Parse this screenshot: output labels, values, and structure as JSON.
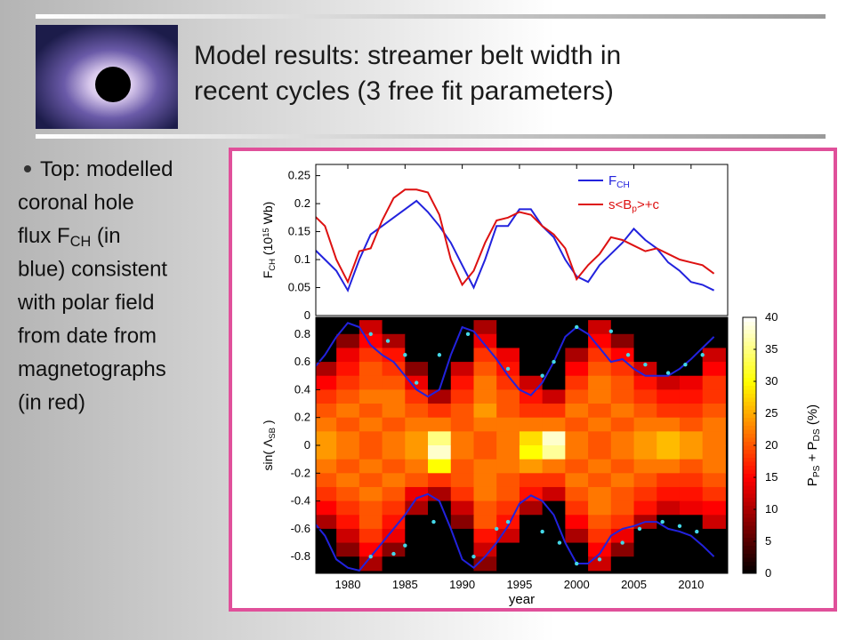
{
  "slide": {
    "title": [
      "Model results: streamer belt width in",
      "recent cycles (3 free fit parameters)"
    ],
    "bullet": [
      "Top: modelled",
      "coronal hole",
      [
        "flux F",
        {
          "text": "CH",
          "shift": "sub"
        },
        " (in"
      ],
      "blue) consistent",
      "with polar field",
      "from date from",
      "magnetographs",
      "(in red)"
    ]
  },
  "chart_data": [
    {
      "type": "line",
      "ylabel": [
        "F",
        {
          "text": "CH",
          "shift": "sub"
        },
        " (10",
        {
          "text": "15",
          "shift": "super"
        },
        " Wb)"
      ],
      "x": [
        1977,
        1978,
        1979,
        1980,
        1981,
        1982,
        1983,
        1984,
        1985,
        1986,
        1987,
        1988,
        1989,
        1990,
        1991,
        1992,
        1993,
        1994,
        1995,
        1996,
        1997,
        1998,
        1999,
        2000,
        2001,
        2002,
        2003,
        2004,
        2005,
        2006,
        2007,
        2008,
        2009,
        2010,
        2011,
        2012
      ],
      "series": [
        {
          "name": [
            "F",
            {
              "text": "CH",
              "shift": "sub"
            }
          ],
          "color": "#2222dd",
          "values": [
            0.12,
            0.1,
            0.08,
            0.045,
            0.1,
            0.145,
            0.16,
            0.175,
            0.19,
            0.205,
            0.185,
            0.16,
            0.13,
            0.09,
            0.05,
            0.1,
            0.16,
            0.16,
            0.19,
            0.19,
            0.16,
            0.14,
            0.1,
            0.07,
            0.06,
            0.09,
            0.11,
            0.13,
            0.155,
            0.135,
            0.12,
            0.095,
            0.08,
            0.06,
            0.055,
            0.045
          ]
        },
        {
          "name": [
            "s<B",
            {
              "text": "p",
              "shift": "sub"
            },
            ">+c"
          ],
          "color": "#dd1111",
          "values": [
            0.18,
            0.16,
            0.1,
            0.06,
            0.115,
            0.12,
            0.17,
            0.21,
            0.225,
            0.225,
            0.22,
            0.18,
            0.1,
            0.055,
            0.08,
            0.13,
            0.17,
            0.175,
            0.185,
            0.18,
            0.16,
            0.145,
            0.12,
            0.065,
            0.09,
            0.11,
            0.14,
            0.135,
            0.125,
            0.115,
            0.12,
            0.11,
            0.1,
            0.095,
            0.09,
            0.075
          ]
        }
      ],
      "xlim": [
        1977.2,
        2013.2
      ],
      "ylim": [
        0,
        0.27
      ],
      "yticks": [
        0,
        0.05,
        0.1,
        0.15,
        0.2,
        0.25
      ]
    },
    {
      "type": "heatmap",
      "xlabel": "year",
      "ylabel": [
        "sin( Λ",
        {
          "text": "SB",
          "shift": "sub"
        },
        " )"
      ],
      "colorbar_label": [
        "P",
        {
          "text": "PS",
          "shift": "sub"
        },
        " + P",
        {
          "text": "DS",
          "shift": "sub"
        },
        "   (%)"
      ],
      "x": [
        1978,
        1980,
        1982,
        1984,
        1986,
        1988,
        1990,
        1992,
        1994,
        1996,
        1998,
        2000,
        2002,
        2004,
        2006,
        2008,
        2010,
        2012
      ],
      "y": [
        0.85,
        0.75,
        0.65,
        0.55,
        0.45,
        0.35,
        0.25,
        0.15,
        0.05,
        -0.05,
        -0.15,
        -0.25,
        -0.35,
        -0.45,
        -0.55,
        -0.65,
        -0.75,
        -0.85
      ],
      "z": [
        [
          0,
          0,
          12,
          0,
          0,
          0,
          0,
          10,
          0,
          0,
          0,
          0,
          12,
          0,
          0,
          0,
          0,
          0
        ],
        [
          0,
          8,
          15,
          10,
          0,
          0,
          0,
          14,
          0,
          0,
          0,
          0,
          15,
          8,
          0,
          0,
          0,
          0
        ],
        [
          0,
          14,
          18,
          16,
          0,
          0,
          0,
          18,
          14,
          0,
          0,
          10,
          18,
          15,
          0,
          0,
          0,
          12
        ],
        [
          10,
          16,
          20,
          18,
          8,
          0,
          12,
          20,
          16,
          0,
          0,
          15,
          20,
          18,
          12,
          0,
          0,
          15
        ],
        [
          15,
          18,
          20,
          20,
          14,
          0,
          16,
          22,
          18,
          12,
          0,
          18,
          22,
          20,
          16,
          12,
          14,
          18
        ],
        [
          18,
          20,
          22,
          22,
          18,
          10,
          18,
          22,
          20,
          16,
          12,
          20,
          22,
          20,
          18,
          16,
          16,
          18
        ],
        [
          20,
          22,
          20,
          22,
          20,
          18,
          20,
          24,
          20,
          18,
          18,
          22,
          20,
          22,
          20,
          18,
          18,
          20
        ],
        [
          22,
          20,
          22,
          20,
          22,
          22,
          20,
          22,
          22,
          22,
          22,
          20,
          22,
          20,
          22,
          22,
          20,
          22
        ],
        [
          24,
          22,
          20,
          22,
          24,
          35,
          22,
          20,
          22,
          28,
          38,
          22,
          20,
          22,
          24,
          26,
          24,
          22
        ],
        [
          24,
          22,
          20,
          22,
          24,
          38,
          22,
          20,
          22,
          30,
          36,
          22,
          20,
          22,
          24,
          26,
          24,
          22
        ],
        [
          22,
          20,
          22,
          20,
          22,
          30,
          20,
          22,
          22,
          24,
          22,
          20,
          22,
          20,
          22,
          22,
          20,
          22
        ],
        [
          20,
          22,
          20,
          22,
          20,
          18,
          20,
          22,
          20,
          18,
          18,
          22,
          20,
          22,
          20,
          18,
          18,
          20
        ],
        [
          18,
          20,
          22,
          20,
          14,
          10,
          18,
          22,
          20,
          16,
          12,
          20,
          22,
          20,
          18,
          16,
          16,
          18
        ],
        [
          15,
          18,
          20,
          18,
          10,
          0,
          12,
          20,
          18,
          10,
          0,
          18,
          22,
          20,
          16,
          12,
          14,
          15
        ],
        [
          10,
          16,
          20,
          16,
          0,
          0,
          8,
          20,
          16,
          0,
          0,
          15,
          20,
          18,
          10,
          0,
          0,
          12
        ],
        [
          0,
          12,
          18,
          14,
          0,
          0,
          0,
          16,
          12,
          0,
          0,
          10,
          18,
          14,
          0,
          0,
          0,
          0
        ],
        [
          0,
          8,
          15,
          8,
          0,
          0,
          0,
          12,
          0,
          0,
          0,
          0,
          15,
          8,
          0,
          0,
          0,
          0
        ],
        [
          0,
          0,
          10,
          0,
          0,
          0,
          0,
          8,
          0,
          0,
          0,
          0,
          12,
          0,
          0,
          0,
          0,
          0
        ]
      ],
      "lines": [
        {
          "color": "#2222dd",
          "x": [
            1977,
            1978,
            1979,
            1980,
            1981,
            1982,
            1983,
            1984,
            1985,
            1986,
            1987,
            1988,
            1989,
            1990,
            1991,
            1992,
            1993,
            1994,
            1995,
            1996,
            1997,
            1998,
            1999,
            2000,
            2001,
            2002,
            2003,
            2004,
            2005,
            2006,
            2007,
            2008,
            2009,
            2010,
            2011,
            2012
          ],
          "values": [
            0.55,
            0.65,
            0.78,
            0.88,
            0.85,
            0.72,
            0.65,
            0.6,
            0.5,
            0.4,
            0.35,
            0.4,
            0.65,
            0.85,
            0.82,
            0.72,
            0.62,
            0.5,
            0.4,
            0.36,
            0.45,
            0.6,
            0.78,
            0.85,
            0.8,
            0.7,
            0.6,
            0.62,
            0.55,
            0.5,
            0.5,
            0.5,
            0.55,
            0.62,
            0.7,
            0.78
          ]
        },
        {
          "color": "#2222dd",
          "x": [
            1977,
            1978,
            1979,
            1980,
            1981,
            1982,
            1983,
            1984,
            1985,
            1986,
            1987,
            1988,
            1989,
            1990,
            1991,
            1992,
            1993,
            1994,
            1995,
            1996,
            1997,
            1998,
            1999,
            2000,
            2001,
            2002,
            2003,
            2004,
            2005,
            2006,
            2007,
            2008,
            2009,
            2010,
            2011,
            2012
          ],
          "values": [
            -0.55,
            -0.65,
            -0.82,
            -0.88,
            -0.9,
            -0.8,
            -0.7,
            -0.6,
            -0.5,
            -0.38,
            -0.35,
            -0.4,
            -0.6,
            -0.82,
            -0.88,
            -0.8,
            -0.7,
            -0.58,
            -0.42,
            -0.36,
            -0.4,
            -0.5,
            -0.7,
            -0.85,
            -0.85,
            -0.78,
            -0.65,
            -0.6,
            -0.58,
            -0.55,
            -0.55,
            -0.6,
            -0.62,
            -0.65,
            -0.72,
            -0.8
          ]
        }
      ],
      "points": [
        {
          "color": "#44d8e8",
          "x": [
            1982,
            1983.5,
            1985,
            1986,
            1988,
            1990.5,
            1994,
            1997,
            1998,
            2000,
            2003,
            2004.5,
            2006,
            2008,
            2009.5,
            2011
          ],
          "values": [
            0.8,
            0.75,
            0.65,
            0.45,
            0.65,
            0.8,
            0.55,
            0.5,
            0.6,
            0.85,
            0.82,
            0.65,
            0.58,
            0.52,
            0.58,
            0.65
          ]
        },
        {
          "color": "#44d8e8",
          "x": [
            1982,
            1984,
            1985,
            1987.5,
            1991,
            1993,
            1994,
            1997,
            1998.5,
            2000,
            2002,
            2004,
            2005.5,
            2007.5,
            2009,
            2010.5
          ],
          "values": [
            -0.8,
            -0.78,
            -0.72,
            -0.55,
            -0.8,
            -0.6,
            -0.55,
            -0.62,
            -0.7,
            -0.85,
            -0.82,
            -0.7,
            -0.6,
            -0.55,
            -0.58,
            -0.62
          ]
        }
      ],
      "xlim": [
        1977.2,
        2013.2
      ],
      "ylim": [
        -0.92,
        0.92
      ],
      "xticks": [
        1980,
        1985,
        1990,
        1995,
        2000,
        2005,
        2010
      ],
      "yticks": [
        -0.8,
        -0.6,
        -0.4,
        -0.2,
        0,
        0.2,
        0.4,
        0.6,
        0.8
      ],
      "clim": [
        0,
        40
      ],
      "cticks": [
        0,
        5,
        10,
        15,
        20,
        25,
        30,
        35,
        40
      ],
      "colormap": "hot"
    }
  ]
}
